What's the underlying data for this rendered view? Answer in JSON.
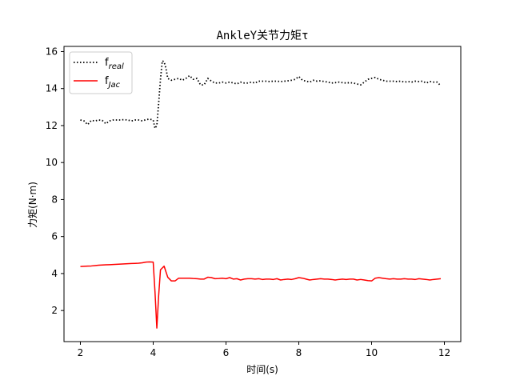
{
  "chart_data": {
    "type": "line",
    "title": "AnkleY关节力矩τ",
    "xlabel": "时间(s)",
    "ylabel": "力矩(N·m)",
    "xlim": [
      1.55,
      12.45
    ],
    "ylim": [
      0.32,
      16.28
    ],
    "xticks": [
      2,
      4,
      6,
      8,
      10,
      12
    ],
    "yticks": [
      2,
      4,
      6,
      8,
      10,
      12,
      14,
      16
    ],
    "grid": false,
    "legend_position": "top-left",
    "series": [
      {
        "name_main": "f",
        "name_sub": "real",
        "color": "#000000",
        "style": "dotted",
        "x": [
          2.0,
          2.1,
          2.2,
          2.3,
          2.4,
          2.5,
          2.6,
          2.7,
          2.8,
          2.9,
          3.0,
          3.1,
          3.2,
          3.3,
          3.4,
          3.5,
          3.6,
          3.7,
          3.8,
          3.9,
          4.0,
          4.05,
          4.1,
          4.15,
          4.2,
          4.25,
          4.3,
          4.35,
          4.4,
          4.5,
          4.6,
          4.7,
          4.8,
          4.9,
          5.0,
          5.1,
          5.2,
          5.3,
          5.4,
          5.5,
          5.6,
          5.7,
          5.8,
          5.9,
          6.0,
          6.1,
          6.2,
          6.3,
          6.4,
          6.5,
          6.6,
          6.7,
          6.8,
          6.9,
          7.0,
          7.1,
          7.2,
          7.3,
          7.4,
          7.5,
          7.6,
          7.7,
          7.8,
          7.9,
          8.0,
          8.1,
          8.2,
          8.3,
          8.4,
          8.5,
          8.6,
          8.7,
          8.8,
          8.9,
          9.0,
          9.1,
          9.2,
          9.3,
          9.4,
          9.5,
          9.6,
          9.7,
          9.8,
          9.9,
          10.0,
          10.1,
          10.2,
          10.3,
          10.4,
          10.5,
          10.6,
          10.7,
          10.8,
          10.9,
          11.0,
          11.1,
          11.2,
          11.3,
          11.4,
          11.5,
          11.6,
          11.7,
          11.8,
          11.9
        ],
        "y": [
          12.3,
          12.25,
          12.05,
          12.28,
          12.25,
          12.3,
          12.28,
          12.1,
          12.25,
          12.3,
          12.3,
          12.3,
          12.32,
          12.3,
          12.25,
          12.3,
          12.3,
          12.25,
          12.32,
          12.35,
          12.3,
          11.85,
          12.0,
          13.2,
          14.5,
          15.5,
          15.45,
          15.1,
          14.55,
          14.45,
          14.5,
          14.55,
          14.45,
          14.55,
          14.7,
          14.5,
          14.55,
          14.2,
          14.2,
          14.55,
          14.4,
          14.3,
          14.3,
          14.35,
          14.3,
          14.35,
          14.3,
          14.25,
          14.35,
          14.3,
          14.3,
          14.35,
          14.3,
          14.4,
          14.4,
          14.4,
          14.38,
          14.4,
          14.4,
          14.38,
          14.4,
          14.42,
          14.45,
          14.5,
          14.65,
          14.45,
          14.4,
          14.35,
          14.45,
          14.4,
          14.42,
          14.38,
          14.35,
          14.3,
          14.32,
          14.35,
          14.32,
          14.3,
          14.32,
          14.3,
          14.25,
          14.2,
          14.35,
          14.5,
          14.55,
          14.6,
          14.5,
          14.45,
          14.4,
          14.4,
          14.4,
          14.38,
          14.4,
          14.35,
          14.38,
          14.35,
          14.4,
          14.38,
          14.4,
          14.3,
          14.38,
          14.35,
          14.35,
          14.15
        ]
      },
      {
        "name_main": "f",
        "name_sub": "Jac",
        "color": "#ff0000",
        "style": "solid",
        "x": [
          2.0,
          2.1,
          2.2,
          2.3,
          2.4,
          2.5,
          2.6,
          2.7,
          2.8,
          2.9,
          3.0,
          3.1,
          3.2,
          3.3,
          3.4,
          3.5,
          3.6,
          3.7,
          3.8,
          3.9,
          4.0,
          4.05,
          4.1,
          4.15,
          4.2,
          4.25,
          4.3,
          4.35,
          4.4,
          4.5,
          4.6,
          4.7,
          4.8,
          4.9,
          5.0,
          5.1,
          5.2,
          5.3,
          5.4,
          5.5,
          5.6,
          5.7,
          5.8,
          5.9,
          6.0,
          6.1,
          6.2,
          6.3,
          6.4,
          6.5,
          6.6,
          6.7,
          6.8,
          6.9,
          7.0,
          7.1,
          7.2,
          7.3,
          7.4,
          7.5,
          7.6,
          7.7,
          7.8,
          7.9,
          8.0,
          8.1,
          8.2,
          8.3,
          8.4,
          8.5,
          8.6,
          8.7,
          8.8,
          8.9,
          9.0,
          9.1,
          9.2,
          9.3,
          9.4,
          9.5,
          9.6,
          9.7,
          9.8,
          9.9,
          10.0,
          10.1,
          10.2,
          10.3,
          10.4,
          10.5,
          10.6,
          10.7,
          10.8,
          10.9,
          11.0,
          11.1,
          11.2,
          11.3,
          11.4,
          11.5,
          11.6,
          11.7,
          11.8,
          11.9
        ],
        "y": [
          4.38,
          4.39,
          4.4,
          4.41,
          4.43,
          4.45,
          4.46,
          4.47,
          4.48,
          4.49,
          4.5,
          4.51,
          4.52,
          4.53,
          4.54,
          4.55,
          4.56,
          4.58,
          4.62,
          4.63,
          4.62,
          3.0,
          1.05,
          2.8,
          4.2,
          4.3,
          4.4,
          4.1,
          3.8,
          3.6,
          3.6,
          3.75,
          3.75,
          3.75,
          3.75,
          3.73,
          3.72,
          3.7,
          3.7,
          3.8,
          3.78,
          3.72,
          3.73,
          3.75,
          3.72,
          3.78,
          3.7,
          3.72,
          3.65,
          3.7,
          3.72,
          3.72,
          3.7,
          3.72,
          3.68,
          3.7,
          3.7,
          3.68,
          3.72,
          3.65,
          3.68,
          3.7,
          3.68,
          3.72,
          3.78,
          3.75,
          3.7,
          3.65,
          3.68,
          3.7,
          3.72,
          3.7,
          3.7,
          3.68,
          3.65,
          3.68,
          3.7,
          3.68,
          3.7,
          3.7,
          3.65,
          3.68,
          3.65,
          3.62,
          3.6,
          3.75,
          3.78,
          3.75,
          3.72,
          3.7,
          3.72,
          3.7,
          3.7,
          3.72,
          3.7,
          3.7,
          3.68,
          3.72,
          3.7,
          3.68,
          3.65,
          3.68,
          3.7,
          3.72
        ]
      }
    ]
  }
}
